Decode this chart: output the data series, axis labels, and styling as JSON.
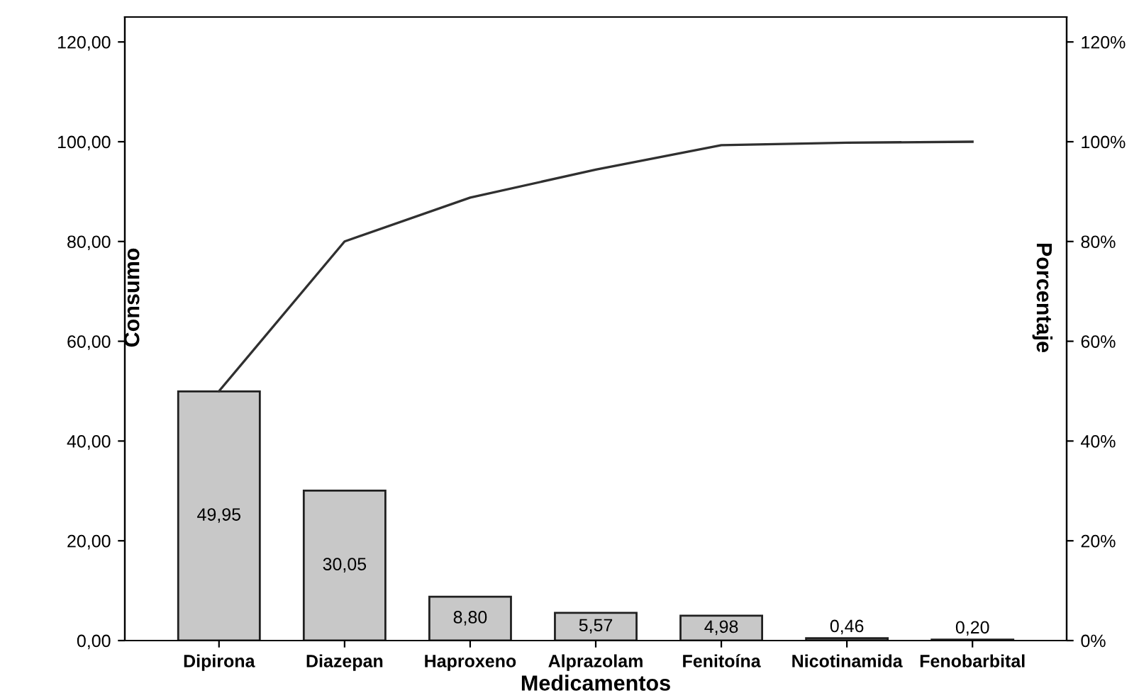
{
  "chart_data": {
    "type": "bar",
    "xlabel": "Medicamentos",
    "ylabel": "Consumo",
    "y2label": "Porcentaje",
    "categories": [
      "Dipirona",
      "Diazepan",
      "Haproxeno",
      "Alprazolam",
      "Fenitoína",
      "Nicotinamida",
      "Fenobarbital"
    ],
    "series": [
      {
        "color": "#c8c8c8",
        "values": [
          49.95,
          30.05,
          8.8,
          5.57,
          4.98,
          0.46,
          0.2
        ],
        "value_labels": [
          "49,95",
          "30,05",
          "8,80",
          "5,57",
          "4,98",
          "0,46",
          "0,20"
        ]
      },
      {
        "type": "line",
        "axis": "y2",
        "color": "#303030",
        "values": [
          50,
          80.0,
          88.8,
          94.4,
          99.3,
          99.8,
          100.0
        ]
      }
    ],
    "ylim": [
      0,
      125
    ],
    "yticks": [
      {
        "value": 0,
        "label": "0,00"
      },
      {
        "value": 20,
        "label": "20,00"
      },
      {
        "value": 40,
        "label": "40,00"
      },
      {
        "value": 60,
        "label": "60,00"
      },
      {
        "value": 80,
        "label": "80,00"
      },
      {
        "value": 100,
        "label": "100,00"
      },
      {
        "value": 120,
        "label": "120,00"
      }
    ],
    "y2lim": [
      0,
      125
    ],
    "y2ticks": [
      {
        "value": 0,
        "label": "0%"
      },
      {
        "value": 20,
        "label": "20%"
      },
      {
        "value": 40,
        "label": "40%"
      },
      {
        "value": 60,
        "label": "60%"
      },
      {
        "value": 80,
        "label": "80%"
      },
      {
        "value": 100,
        "label": "100%"
      },
      {
        "value": 120,
        "label": "120%"
      }
    ],
    "grid": false,
    "marker": "none",
    "line_style": "solid"
  }
}
